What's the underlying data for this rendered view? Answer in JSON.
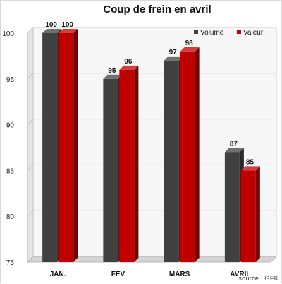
{
  "chart_data": {
    "type": "bar",
    "title": "Coup de frein en avril",
    "categories": [
      "JAN.",
      "FEV.",
      "MARS",
      "AVRIL"
    ],
    "series": [
      {
        "name": "Volume",
        "values": [
          100,
          95,
          97,
          87
        ],
        "color": "#404040"
      },
      {
        "name": "Valeur",
        "values": [
          100,
          96,
          98,
          85
        ],
        "color": "#c00000"
      }
    ],
    "ylim": [
      75,
      100
    ],
    "yticks": [
      75,
      80,
      85,
      90,
      95,
      100
    ],
    "grid": true,
    "legend_position": "top-right",
    "three_d": true,
    "source": "source : GFK"
  }
}
